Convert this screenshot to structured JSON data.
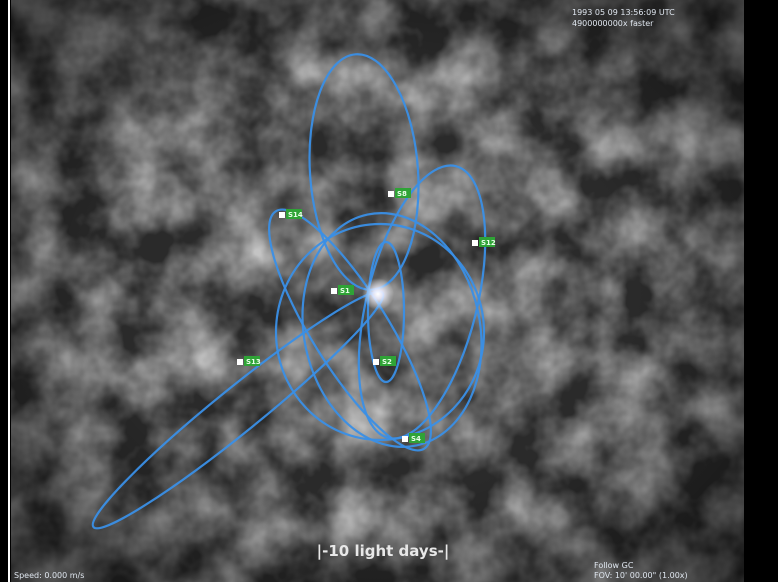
{
  "hud": {
    "datetime": "1993 05 09 13:56:09 UTC",
    "time_rate": "4900000000x faster",
    "scale_bar": "|-10 light days-|",
    "speed": "Speed: 0.000 m/s",
    "follow": "Follow GC",
    "fov": "FOV: 10' 00.00\" (1.00x)"
  },
  "stars": [
    {
      "label": "S14"
    },
    {
      "label": "S8"
    },
    {
      "label": "S12"
    },
    {
      "label": "S1"
    },
    {
      "label": "S13"
    },
    {
      "label": "S2"
    },
    {
      "label": "S4"
    }
  ]
}
